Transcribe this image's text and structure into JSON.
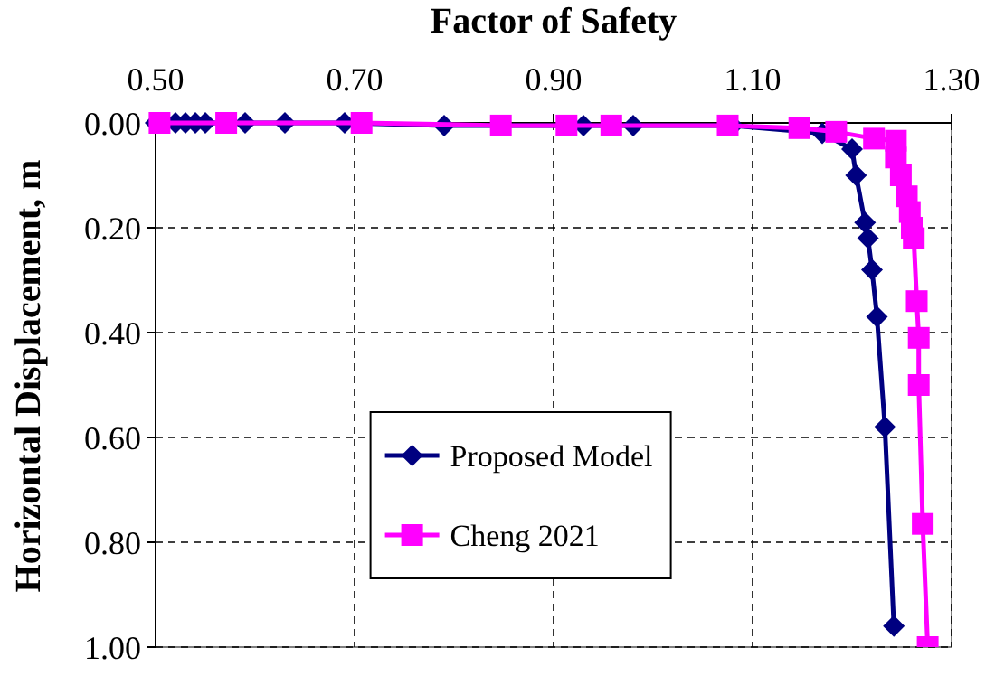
{
  "chart_data": {
    "type": "line",
    "xlabel": "Factor of Safety",
    "ylabel": "Horizontal Displacement, m",
    "xlim": [
      0.5,
      1.3
    ],
    "xticks": [
      {
        "value": 0.5,
        "label": "0.50"
      },
      {
        "value": 0.7,
        "label": "0.70"
      },
      {
        "value": 0.9,
        "label": "0.90"
      },
      {
        "value": 1.1,
        "label": "1.10"
      },
      {
        "value": 1.3,
        "label": "1.30"
      }
    ],
    "ylim": [
      1.0,
      0.0
    ],
    "yticks": [
      {
        "value": 0,
        "label": "0.00"
      },
      {
        "value": 0.2,
        "label": "0.20"
      },
      {
        "value": 0.4,
        "label": "0.40"
      },
      {
        "value": 0.6,
        "label": "0.60"
      },
      {
        "value": 0.8,
        "label": "0.80"
      },
      {
        "value": 1.0,
        "label": "1.00"
      }
    ],
    "grid": true,
    "legend": "bottom",
    "series": [
      {
        "name": "Proposed Model",
        "color": "#000080",
        "marker": "diamond",
        "x": [
          0.5,
          0.52,
          0.53,
          0.54,
          0.55,
          0.59,
          0.63,
          0.69,
          0.79,
          0.93,
          0.98,
          1.08,
          1.17,
          1.2,
          1.204,
          1.213,
          1.216,
          1.22,
          1.225,
          1.233,
          1.242
        ],
        "values": [
          0,
          0,
          0,
          0,
          0,
          0,
          0,
          0,
          0.005,
          0.005,
          0.005,
          0.005,
          0.02,
          0.05,
          0.1,
          0.19,
          0.22,
          0.28,
          0.37,
          0.58,
          0.96
        ]
      },
      {
        "name": "Cheng 2021",
        "color": "#ff00ff",
        "marker": "square",
        "x": [
          0.504,
          0.571,
          0.707,
          0.847,
          0.913,
          0.958,
          1.075,
          1.147,
          1.184,
          1.222,
          1.244,
          1.244,
          1.249,
          1.255,
          1.258,
          1.26,
          1.262,
          1.265,
          1.267,
          1.267,
          1.271,
          1.276
        ],
        "values": [
          0,
          0,
          0,
          0.005,
          0.005,
          0.005,
          0.005,
          0.01,
          0.017,
          0.03,
          0.034,
          0.066,
          0.1,
          0.14,
          0.17,
          0.2,
          0.22,
          0.34,
          0.41,
          0.5,
          0.765,
          1.0
        ]
      }
    ]
  }
}
